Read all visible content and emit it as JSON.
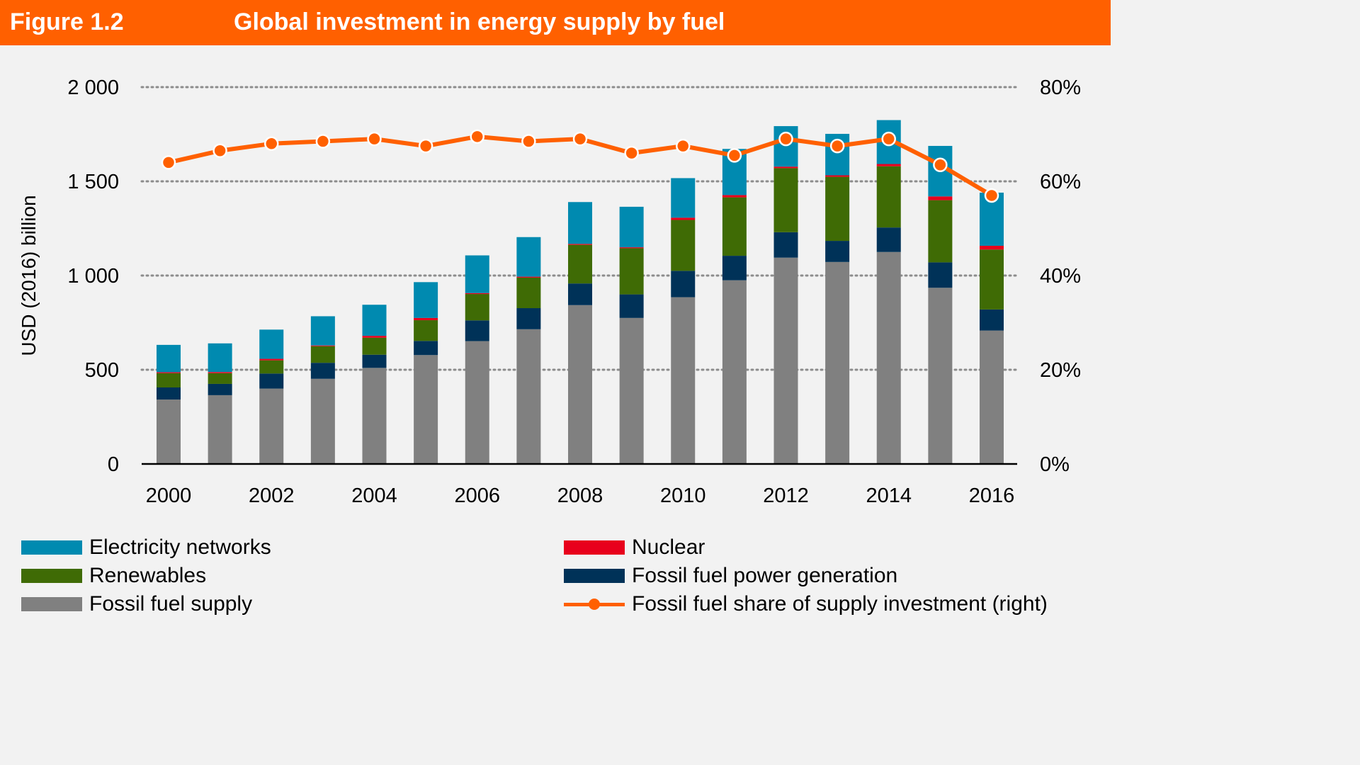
{
  "header": {
    "figure_label": "Figure 1.2",
    "title": "Global investment in energy supply by fuel"
  },
  "colors": {
    "accent": "#ff6000",
    "electricity_networks": "#008ab0",
    "renewables": "#3f6b05",
    "fossil_fuel_supply": "#808080",
    "nuclear": "#e8001c",
    "fossil_fuel_power": "#003258",
    "share_line": "#ff6000"
  },
  "legend": [
    {
      "key": "networks",
      "label": "Electricity networks"
    },
    {
      "key": "renewables",
      "label": "Renewables"
    },
    {
      "key": "supply",
      "label": "Fossil fuel supply"
    },
    {
      "key": "nuclear",
      "label": "Nuclear"
    },
    {
      "key": "power",
      "label": "Fossil fuel power generation"
    },
    {
      "key": "share",
      "label": "Fossil fuel share of supply investment (right)"
    }
  ],
  "chart_data": {
    "type": "bar",
    "stacked": true,
    "title": "Global investment in energy supply by fuel",
    "xlabel": "",
    "ylabel": "USD (2016) billion",
    "ylabel_right": "",
    "ylim": [
      0,
      2000
    ],
    "ylim_right": [
      0,
      80
    ],
    "yticks": [
      "0",
      "500",
      "1 000",
      "1 500",
      "2 000"
    ],
    "yticks_right": [
      "0%",
      "20%",
      "40%",
      "60%",
      "80%"
    ],
    "xtick_labels": [
      "2000",
      "2002",
      "2004",
      "2006",
      "2008",
      "2010",
      "2012",
      "2014",
      "2016"
    ],
    "grid": true,
    "legend_position": "bottom",
    "categories": [
      "2000",
      "2001",
      "2002",
      "2003",
      "2004",
      "2005",
      "2006",
      "2007",
      "2008",
      "2009",
      "2010",
      "2011",
      "2012",
      "2013",
      "2014",
      "2015",
      "2016"
    ],
    "series": [
      {
        "name": "Fossil fuel supply",
        "key": "supply",
        "values": [
          342,
          365,
          400,
          452,
          510,
          578,
          652,
          715,
          843,
          775,
          885,
          975,
          1095,
          1072,
          1125,
          935,
          708
        ]
      },
      {
        "name": "Fossil fuel power generation",
        "key": "power",
        "values": [
          64,
          60,
          80,
          85,
          70,
          75,
          110,
          112,
          115,
          125,
          140,
          130,
          135,
          112,
          130,
          135,
          112
        ]
      },
      {
        "name": "Renewables",
        "key": "renewables",
        "values": [
          76,
          57,
          70,
          88,
          90,
          110,
          140,
          162,
          205,
          245,
          270,
          310,
          340,
          340,
          325,
          330,
          318
        ]
      },
      {
        "name": "Nuclear",
        "key": "nuclear",
        "values": [
          5,
          6,
          8,
          4,
          10,
          12,
          5,
          5,
          5,
          5,
          12,
          12,
          8,
          8,
          12,
          20,
          20
        ]
      },
      {
        "name": "Electricity networks",
        "key": "networks",
        "values": [
          145,
          152,
          155,
          155,
          165,
          190,
          200,
          210,
          222,
          215,
          210,
          245,
          215,
          220,
          233,
          268,
          282
        ]
      }
    ],
    "line_series": {
      "name": "Fossil fuel share of supply investment (right)",
      "axis": "right",
      "unit": "%",
      "values": [
        64,
        66.5,
        68,
        68.5,
        69,
        67.5,
        69.5,
        68.5,
        69,
        66,
        67.5,
        65.5,
        69,
        67.5,
        69,
        63.5,
        57
      ]
    }
  }
}
